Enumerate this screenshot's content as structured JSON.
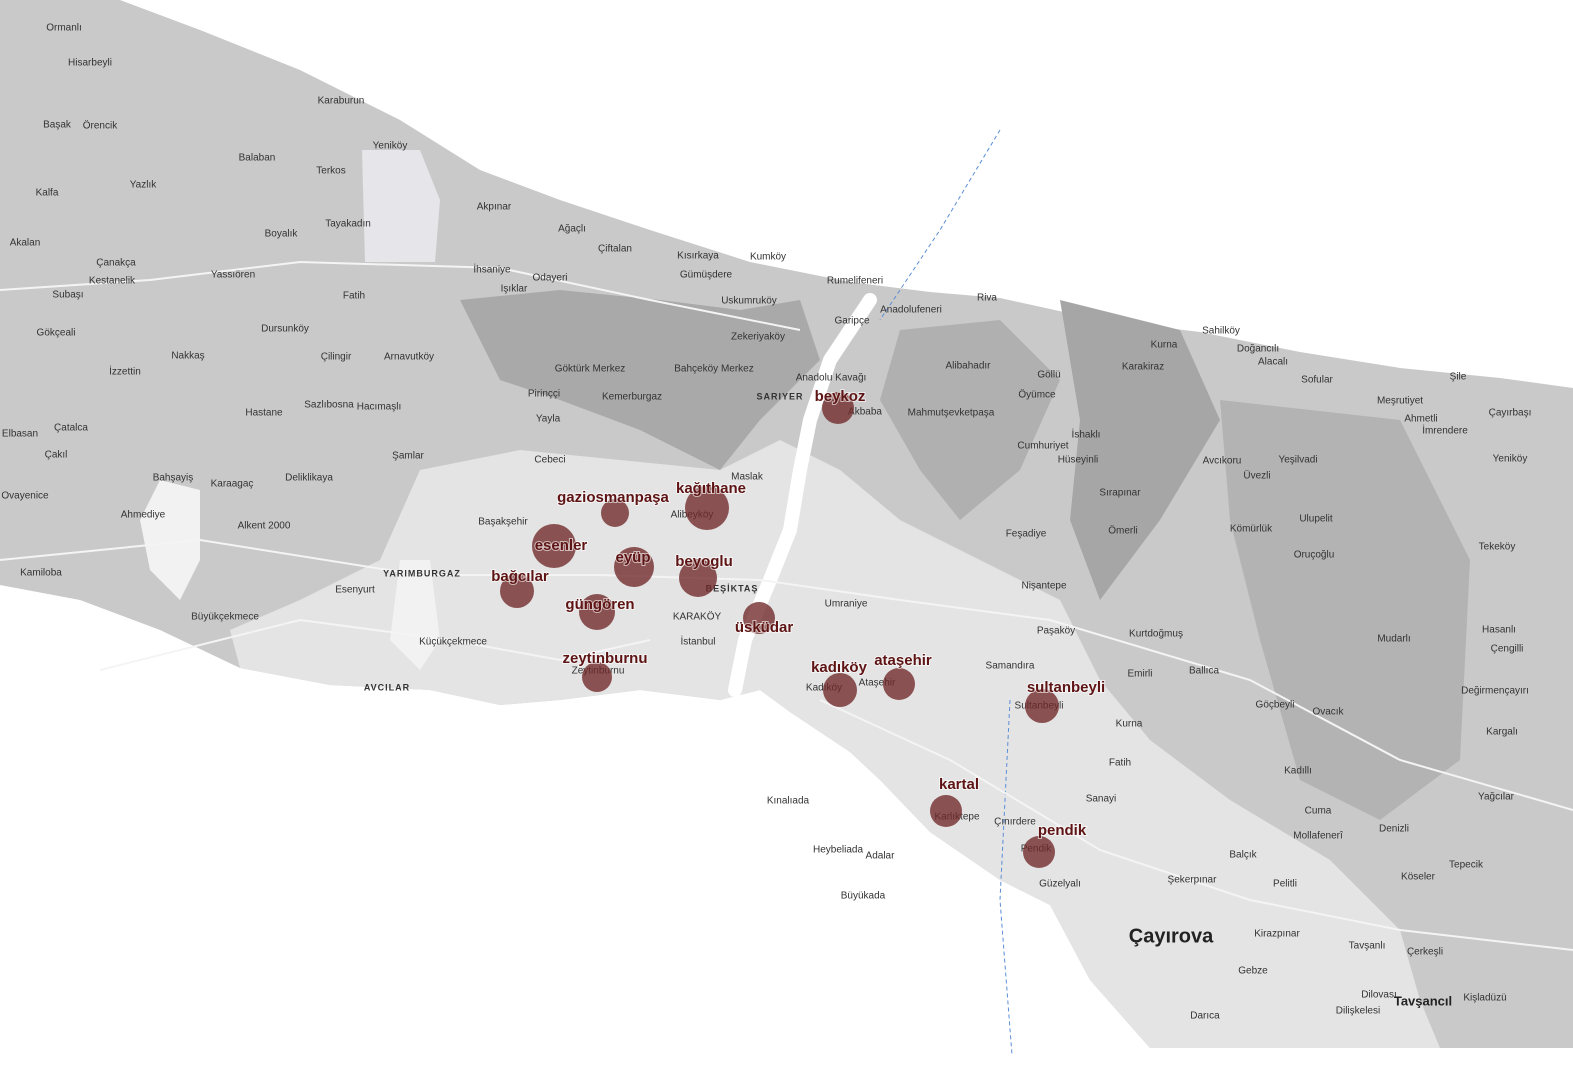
{
  "places": [
    "Ormanlı",
    "Hisarbeyli",
    "Karaburun",
    "Başak",
    "Örencik",
    "Yeniköy",
    "Balaban",
    "Yazlık",
    "Terkos",
    "Kalfa",
    "Akpınar",
    "Boyalık",
    "Tayakadın",
    "Ağaçlı",
    "Akalan",
    "Çiftalan",
    "Kısırkaya",
    "Kumköy",
    "Çanakça",
    "Kestanelik",
    "Yassıören",
    "İhsaniye",
    "Odayeri",
    "Gümüşdere",
    "Rumelifeneri",
    "Subaşı",
    "Fatih",
    "Işıklar",
    "Uskumruköy",
    "Riva",
    "Anadolufeneri",
    "Gökçeali",
    "Dursunköy",
    "Zekeriyaköy",
    "Garipçe",
    "Sahilköy",
    "Kurna",
    "Doğancılı",
    "Nakkaş",
    "Çilingir",
    "Arnavutköy",
    "Alacalı",
    "Karakiraz",
    "Alibahadır",
    "Göktürk Merkez",
    "Bahçeköy Merkez",
    "Anadolu Kavağı",
    "Göllü",
    "Sofular",
    "Şile",
    "İzzettin",
    "Sazlıbosna",
    "Hacımaşlı",
    "Hastane",
    "SARIYER",
    "Pirinççi",
    "Kemerburgaz",
    "Akbaba",
    "Mahmutşevketpaşa",
    "Öyümce",
    "Meşrutiyet",
    "Ahmetli",
    "İmrendere",
    "Çayırbaşı",
    "Yayla",
    "Çatalca",
    "Elbasan",
    "Çakıl",
    "Şamlar",
    "Cebeci",
    "Cumhuriyet",
    "Hüseyinli",
    "İshaklı",
    "Avcıkoru",
    "Yeşilvadi",
    "Yeniköy",
    "Maslak",
    "Üvezli",
    "Bahşayiş",
    "Karaagaç",
    "Deliklikaya",
    "Sırapınar",
    "Ovayenice",
    "Ahmediye",
    "Alibeyköy",
    "Alkent 2000",
    "Başakşehir",
    "Ulupelit",
    "Kömürlük",
    "Feşadiye",
    "Ömerli",
    "Tekeköy",
    "Oruçoğlu",
    "Kamiloba",
    "YARIMBURGAZ",
    "Nişantepe",
    "BEŞİKTAŞ",
    "Esenyurt",
    "Umraniye",
    "Büyükçekmece",
    "KARAKÖY",
    "Paşaköy",
    "Kurtdoğmuş",
    "Mudarlı",
    "Hasanlı",
    "Çengilli",
    "Küçükçekmece",
    "Samandıra",
    "Emirli",
    "Ballıca",
    "Değirmençayırı",
    "AVCILAR",
    "Zeytinburnu",
    "Kadıköy",
    "Ataşehir",
    "Sultanbeyli",
    "Göçbeyli",
    "Ovacık",
    "Kurna",
    "Kargalı",
    "Fatih",
    "Kadıllı",
    "Yağcılar",
    "Sanayi",
    "Kınalıada",
    "Cuma",
    "Denizli",
    "Mollafenerî",
    "Karlıktepe",
    "Çınırdere",
    "Heybeliada",
    "Adalar",
    "Pendik",
    "Balçık",
    "Tepecik",
    "Güzelyalı",
    "Şekerpınar",
    "Pelitli",
    "Köseler",
    "Büyükada",
    "Çayırova",
    "Kirazpınar",
    "Tavşanlı",
    "Çerkeşli",
    "Gebze",
    "Dilovası",
    "Tavşancıl",
    "Kişladüzü",
    "Dilişkelesi",
    "Darıca",
    "İstanbul"
  ],
  "districts": [
    "beykoz",
    "gaziosmanpaşa",
    "kağıthane",
    "esenler",
    "eyüp",
    "beyoglu",
    "bağcılar",
    "güngören",
    "üsküdar",
    "zeytinburnu",
    "kadıköy",
    "ataşehir",
    "sultanbeyli",
    "kartal",
    "pendik"
  ]
}
